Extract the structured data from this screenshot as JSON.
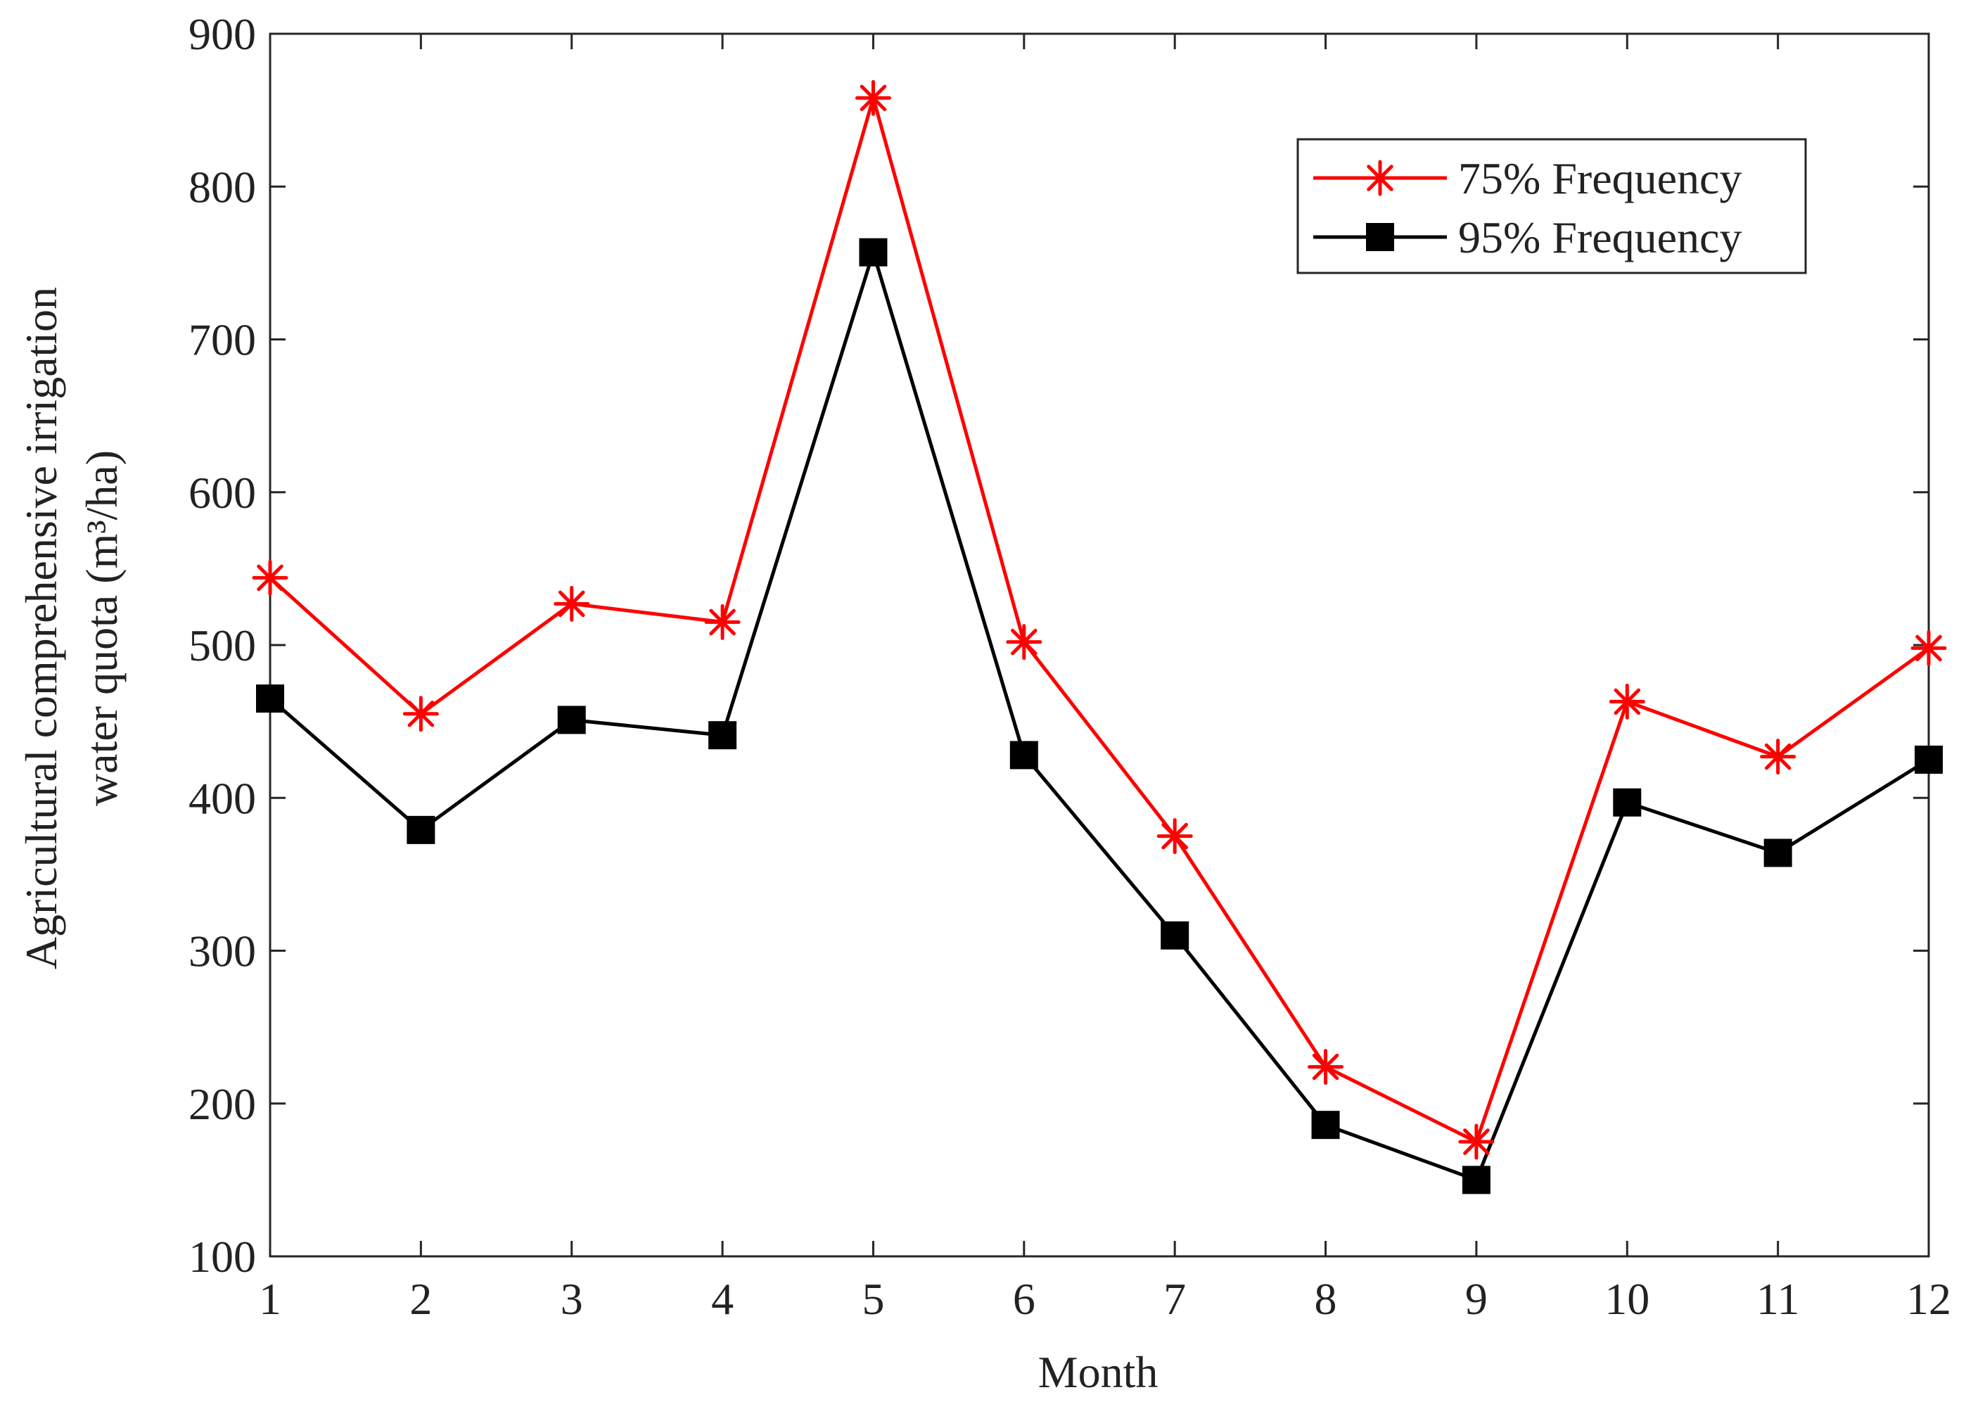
{
  "chart_data": {
    "type": "line",
    "title": "",
    "xlabel": "Month",
    "ylabel_line1": "Agricultural comprehensive irrigation",
    "ylabel_line2": "water quota  (m³/ha)",
    "x": [
      1,
      2,
      3,
      4,
      5,
      6,
      7,
      8,
      9,
      10,
      11,
      12
    ],
    "xticks": [
      "1",
      "2",
      "3",
      "4",
      "5",
      "6",
      "7",
      "8",
      "9",
      "10",
      "11",
      "12"
    ],
    "xlim": [
      1,
      12
    ],
    "ylim": [
      100,
      900
    ],
    "yticks": [
      "100",
      "200",
      "300",
      "400",
      "500",
      "600",
      "700",
      "800",
      "900"
    ],
    "grid": false,
    "legend_position": "top-right",
    "series": [
      {
        "name": "75% Frequency",
        "color": "#ff0000",
        "marker": "asterisk",
        "values": [
          544,
          455,
          527,
          515,
          858,
          502,
          375,
          224,
          175,
          463,
          427,
          498
        ]
      },
      {
        "name": "95% Frequency",
        "color": "#000000",
        "marker": "square",
        "values": [
          465,
          379,
          451,
          441,
          757,
          428,
          310,
          186,
          150,
          397,
          364,
          425
        ]
      }
    ]
  }
}
